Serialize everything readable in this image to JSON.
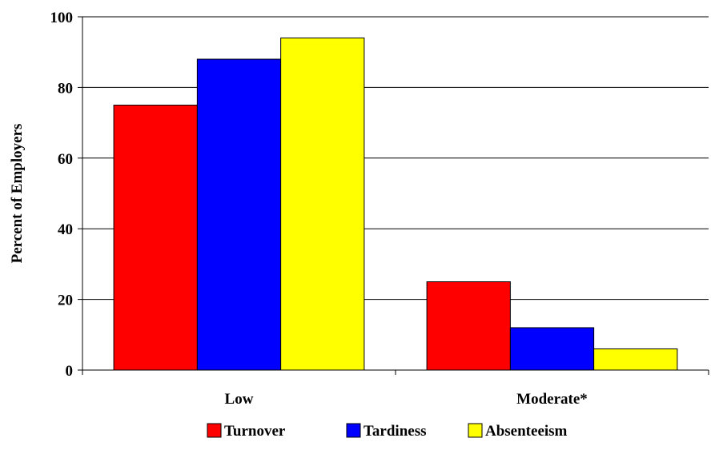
{
  "chart_data": {
    "type": "bar",
    "ylabel": "Percent of Employers",
    "xlabel": "",
    "categories": [
      "Low",
      "Moderate*"
    ],
    "series": [
      {
        "name": "Turnover",
        "values": [
          75,
          25
        ],
        "color": "#FF0000"
      },
      {
        "name": "Tardiness",
        "values": [
          88,
          12
        ],
        "color": "#0000FF"
      },
      {
        "name": "Absenteeism",
        "values": [
          94,
          6
        ],
        "color": "#FFFF00"
      }
    ],
    "ylim": [
      0,
      100
    ],
    "yticks": [
      0,
      20,
      40,
      60,
      80,
      100
    ],
    "grid": true,
    "legend_position": "bottom"
  }
}
